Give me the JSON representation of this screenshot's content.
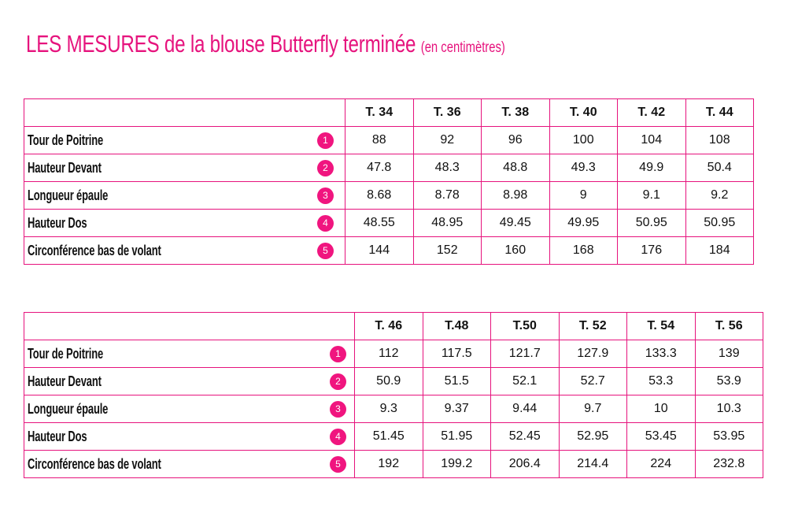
{
  "title": {
    "main": "LES MESURES de la blouse Butterfly terminée",
    "sub": "(en centimètres)"
  },
  "tables": [
    {
      "headers": [
        "T. 34",
        "T. 36",
        "T. 38",
        "T. 40",
        "T. 42",
        "T. 44"
      ],
      "rows": [
        {
          "label": "Tour de Poitrine",
          "badge": "1",
          "values": [
            "88",
            "92",
            "96",
            "100",
            "104",
            "108"
          ]
        },
        {
          "label": "Hauteur Devant",
          "badge": "2",
          "values": [
            "47.8",
            "48.3",
            "48.8",
            "49.3",
            "49.9",
            "50.4"
          ]
        },
        {
          "label": "Longueur épaule",
          "badge": "3",
          "values": [
            "8.68",
            "8.78",
            "8.98",
            "9",
            "9.1",
            "9.2"
          ]
        },
        {
          "label": "Hauteur Dos",
          "badge": "4",
          "values": [
            "48.55",
            "48.95",
            "49.45",
            "49.95",
            "50.95",
            "50.95"
          ]
        },
        {
          "label": "Circonférence bas de volant",
          "badge": "5",
          "values": [
            "144",
            "152",
            "160",
            "168",
            "176",
            "184"
          ]
        }
      ]
    },
    {
      "headers": [
        "T. 46",
        "T.48",
        "T.50",
        "T. 52",
        "T. 54",
        "T. 56"
      ],
      "rows": [
        {
          "label": "Tour de Poitrine",
          "badge": "1",
          "values": [
            "112",
            "117.5",
            "121.7",
            "127.9",
            "133.3",
            "139"
          ]
        },
        {
          "label": "Hauteur Devant",
          "badge": "2",
          "values": [
            "50.9",
            "51.5",
            "52.1",
            "52.7",
            "53.3",
            "53.9"
          ]
        },
        {
          "label": "Longueur épaule",
          "badge": "3",
          "values": [
            "9.3",
            "9.37",
            "9.44",
            "9.7",
            "10",
            "10.3"
          ]
        },
        {
          "label": "Hauteur Dos",
          "badge": "4",
          "values": [
            "51.45",
            "51.95",
            "52.45",
            "52.95",
            "53.45",
            "53.95"
          ]
        },
        {
          "label": "Circonférence bas de volant",
          "badge": "5",
          "values": [
            "192",
            "199.2",
            "206.4",
            "214.4",
            "224",
            "232.8"
          ]
        }
      ]
    }
  ],
  "colors": {
    "accent": "#e6137d",
    "badge": "#f0157f"
  }
}
